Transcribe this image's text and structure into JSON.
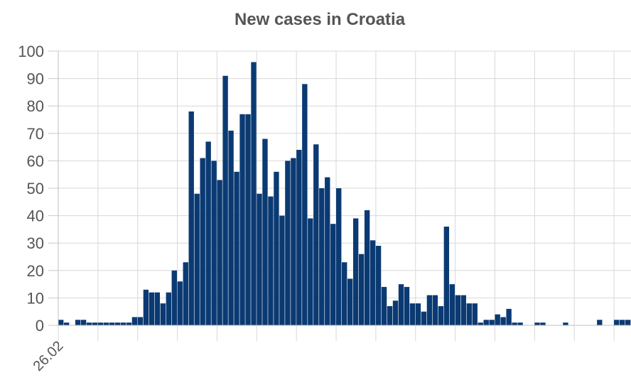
{
  "chart_data": {
    "type": "bar",
    "title": "New cases in Croatia",
    "xlabel": "",
    "ylabel": "",
    "ylim": [
      0,
      100
    ],
    "y_ticks": [
      0,
      10,
      20,
      30,
      40,
      50,
      60,
      70,
      80,
      90,
      100
    ],
    "x_tick_labels": [
      "26.02"
    ],
    "grid": true,
    "bar_color": "#0b3a73",
    "values": [
      2,
      1,
      0,
      2,
      2,
      1,
      1,
      1,
      1,
      1,
      1,
      1,
      1,
      3,
      3,
      13,
      12,
      12,
      8,
      12,
      20,
      16,
      23,
      78,
      48,
      61,
      67,
      60,
      53,
      91,
      71,
      56,
      77,
      77,
      96,
      48,
      68,
      47,
      56,
      40,
      60,
      61,
      64,
      88,
      39,
      66,
      50,
      54,
      37,
      50,
      23,
      17,
      39,
      26,
      42,
      31,
      29,
      14,
      7,
      9,
      15,
      14,
      8,
      8,
      5,
      11,
      11,
      7,
      36,
      15,
      11,
      11,
      8,
      8,
      1,
      2,
      2,
      4,
      3,
      6,
      1,
      1,
      0,
      0,
      1,
      1,
      0,
      0,
      0,
      1,
      0,
      0,
      0,
      0,
      0,
      2,
      0,
      0,
      2,
      2,
      2
    ]
  }
}
